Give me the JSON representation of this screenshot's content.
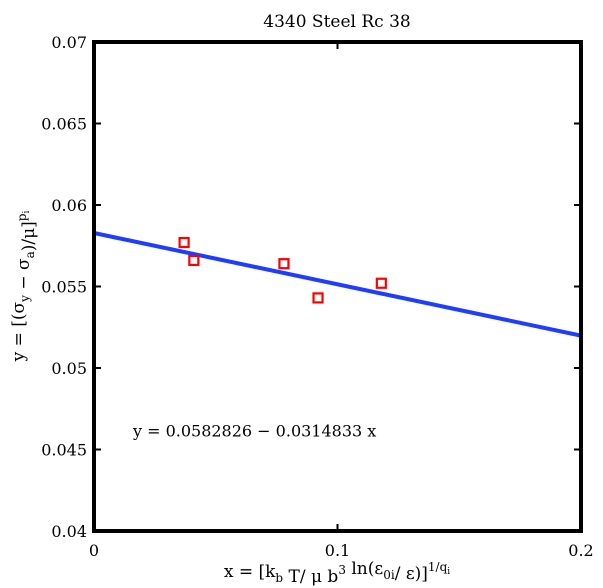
{
  "chart_data": {
    "type": "scatter",
    "title": "4340 Steel Rc 38",
    "xlim": [
      0,
      0.2
    ],
    "ylim": [
      0.04,
      0.07
    ],
    "xticks": [
      {
        "value": 0,
        "label": "0"
      },
      {
        "value": 0.1,
        "label": "0.1"
      },
      {
        "value": 0.2,
        "label": "0.2"
      }
    ],
    "yticks": [
      {
        "value": 0.04,
        "label": "0.04"
      },
      {
        "value": 0.045,
        "label": "0.045"
      },
      {
        "value": 0.05,
        "label": "0.05"
      },
      {
        "value": 0.055,
        "label": "0.055"
      },
      {
        "value": 0.06,
        "label": "0.06"
      },
      {
        "value": 0.065,
        "label": "0.065"
      },
      {
        "value": 0.07,
        "label": "0.07"
      }
    ],
    "xlabel": {
      "text": "x = [k_b T/ μ b^3 ln(ε_0i/ ε)]^1/q_i",
      "parts": [
        {
          "t": "x = [k",
          "s": "n"
        },
        {
          "t": "b",
          "s": "sub"
        },
        {
          "t": " T/ μ b",
          "s": "n"
        },
        {
          "t": "3",
          "s": "sup"
        },
        {
          "t": " ln(ε",
          "s": "n"
        },
        {
          "t": "0i",
          "s": "sub"
        },
        {
          "t": "/ ε)]",
          "s": "n"
        },
        {
          "t": "1/q",
          "s": "sup"
        },
        {
          "t": "i",
          "s": "supsub"
        }
      ]
    },
    "ylabel": {
      "text": "y = [(σ_y − σ_a)/μ]^p_i",
      "parts": [
        {
          "t": "y = [(σ",
          "s": "n"
        },
        {
          "t": "y",
          "s": "sub"
        },
        {
          "t": " − σ",
          "s": "n"
        },
        {
          "t": "a",
          "s": "sub"
        },
        {
          "t": ")/μ]",
          "s": "n"
        },
        {
          "t": "p",
          "s": "sup"
        },
        {
          "t": "i",
          "s": "supsub"
        }
      ]
    },
    "series": [
      {
        "name": "data",
        "kind": "marker",
        "marker": "square",
        "color": "#ff0000",
        "points": [
          {
            "x": 0.037,
            "y": 0.0577
          },
          {
            "x": 0.041,
            "y": 0.0566
          },
          {
            "x": 0.078,
            "y": 0.0564
          },
          {
            "x": 0.092,
            "y": 0.0543
          },
          {
            "x": 0.118,
            "y": 0.0552
          }
        ]
      },
      {
        "name": "fit",
        "kind": "line",
        "color": "#1f3dff",
        "intercept": 0.0582826,
        "slope": -0.0314833,
        "x_range": [
          0,
          0.2
        ]
      }
    ],
    "annotations": [
      {
        "text": "y = 0.0582826 − 0.0314833 x",
        "x": 0.016,
        "y": 0.0458
      }
    ],
    "grid": false,
    "legend": "none"
  }
}
